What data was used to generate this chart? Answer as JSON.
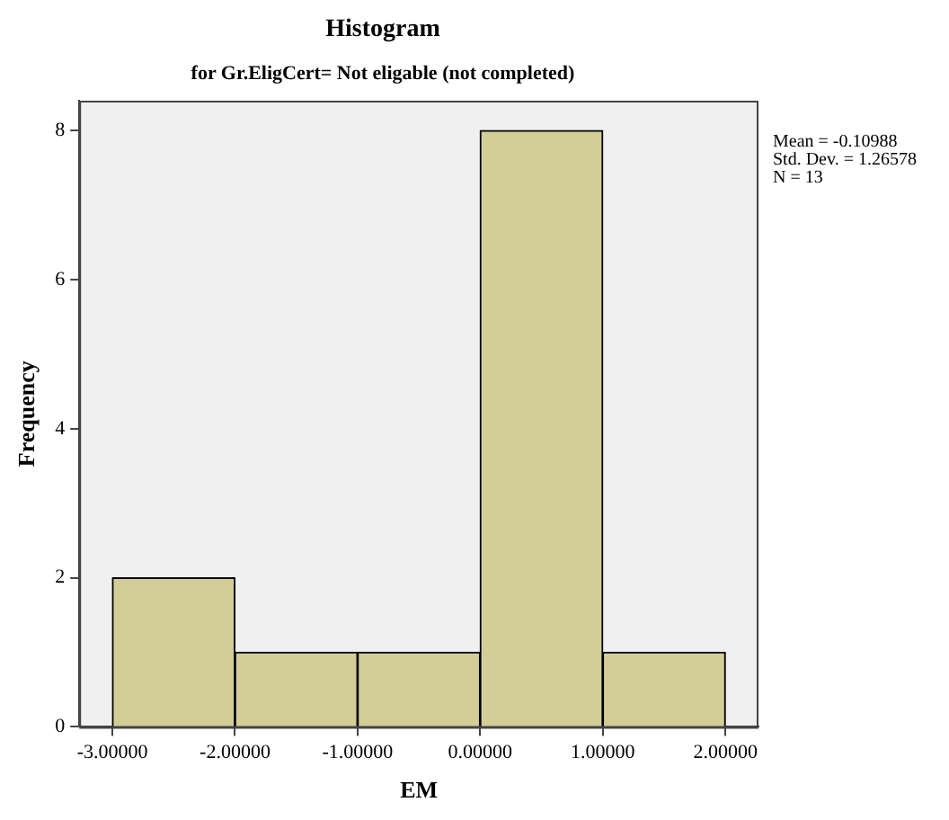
{
  "chart_data": {
    "type": "histogram",
    "title": "Histogram",
    "subtitle": "for Gr.EligCert= Not eligable (not completed)",
    "xlabel": "EM",
    "ylabel": "Frequency",
    "bins": [
      -3,
      -2,
      -1,
      0,
      1,
      2
    ],
    "values": [
      2,
      1,
      1,
      8,
      1
    ],
    "color": "#d3ce98",
    "xlim": [
      -3.27,
      2.27
    ],
    "xticks": [
      {
        "value": -3,
        "label": "-3.00000"
      },
      {
        "value": -2,
        "label": "-2.00000"
      },
      {
        "value": -1,
        "label": "-1.00000"
      },
      {
        "value": 0,
        "label": "0.00000"
      },
      {
        "value": 1,
        "label": "1.00000"
      },
      {
        "value": 2,
        "label": "2.00000"
      }
    ],
    "ylim": [
      0,
      8.4
    ],
    "yticks": [
      0,
      2,
      4,
      6,
      8
    ],
    "grid": false,
    "legend": false,
    "annotations": [
      "Mean = -0.10988",
      "Std. Dev. = 1.26578",
      "N = 13"
    ]
  }
}
